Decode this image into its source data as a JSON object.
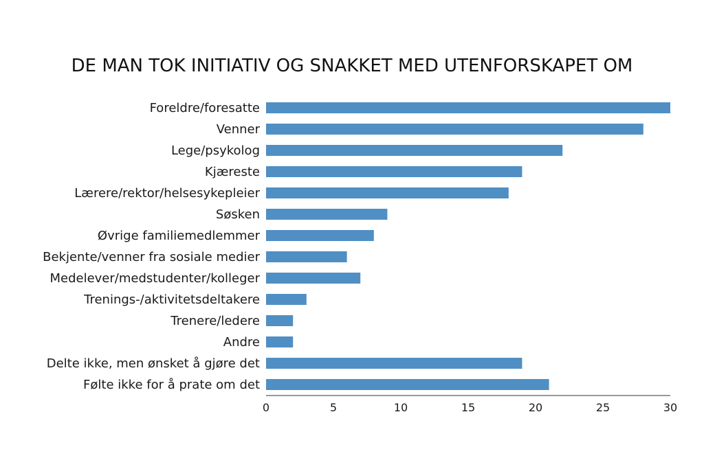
{
  "chart_data": {
    "type": "bar",
    "orientation": "horizontal",
    "title": "DE MAN TOK INITIATIV OG SNAKKET MED UTENFORSKAPET OM",
    "xlabel": "",
    "ylabel": "",
    "xlim": [
      0,
      30
    ],
    "xticks": [
      0,
      5,
      10,
      15,
      20,
      25,
      30
    ],
    "grid": false,
    "color": "#4f8fc4",
    "categories": [
      "Foreldre/foresatte",
      "Venner",
      "Lege/psykolog",
      "Kjæreste",
      "Lærere/rektor/helsesykepleier",
      "Søsken",
      "Øvrige familiemedlemmer",
      "Bekjente/venner fra sosiale medier",
      "Medelever/medstudenter/kolleger",
      "Trenings-/aktivitetsdeltakere",
      "Trenere/ledere",
      "Andre",
      "Delte ikke, men ønsket å gjøre det",
      "Følte ikke for å prate om det"
    ],
    "values": [
      30,
      28,
      22,
      19,
      18,
      9,
      8,
      6,
      7,
      3,
      2,
      2,
      19,
      21
    ]
  }
}
